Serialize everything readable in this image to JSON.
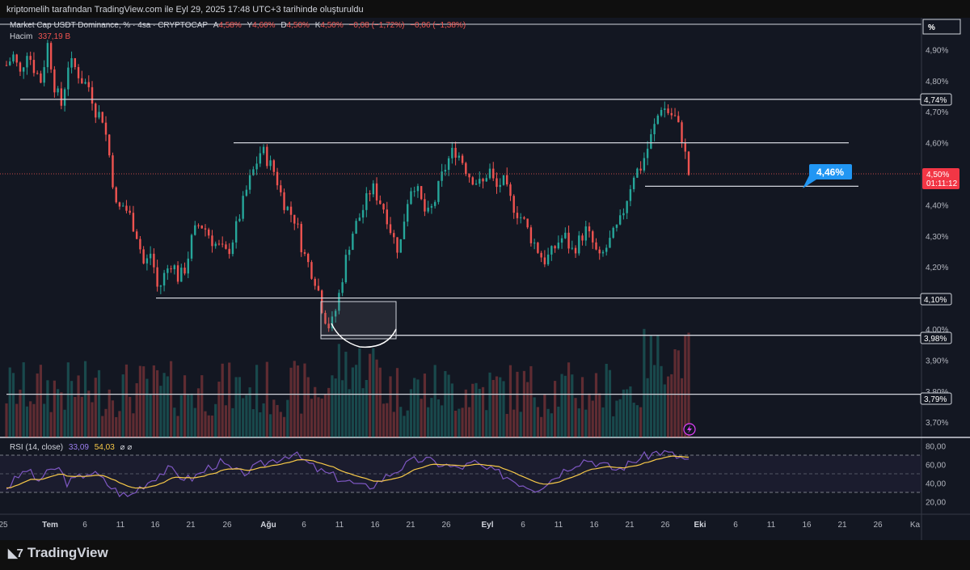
{
  "caption": "kriptomelih tarafından TradingView.com ile Eyl 29, 2025 17:48 UTC+3 tarihinde oluşturuldu",
  "header": {
    "symbol": "Market Cap USDT Dominance, % · 4sa · CRYPTOCAP",
    "a_label": "A",
    "a_value": "4,58%",
    "y_label": "Y",
    "y_value": "4,60%",
    "d_label": "D",
    "d_value": "4,50%",
    "k_label": "K",
    "k_value": "4,50%",
    "change": "−0,08 (−1,72%)",
    "change2": "−0,06 (−1,38%)",
    "volume_label": "Hacim",
    "volume_value": "337,19 B"
  },
  "unit_label": "%",
  "price_axis": [
    "4,90%",
    "4,80%",
    "4,70%",
    "4,60%",
    "4,40%",
    "4,30%",
    "4,20%",
    "4,00%",
    "3,90%",
    "3,80%",
    "3,70%"
  ],
  "level_labels": [
    "4,74%",
    "4,10%",
    "3,98%",
    "3,79%"
  ],
  "current_price": "4,50%",
  "countdown": "01:11:12",
  "callout": "4,46%",
  "rsi": {
    "title": "RSI (14, close)",
    "value1": "33,09",
    "value2": "54,03",
    "symbols": "⌀ ⌀",
    "axis": [
      "80,00",
      "60,00",
      "40,00",
      "20,00"
    ]
  },
  "time_axis": [
    "25",
    "Tem",
    "6",
    "11",
    "16",
    "21",
    "26",
    "Ağu",
    "6",
    "11",
    "16",
    "21",
    "26",
    "Eyl",
    "6",
    "11",
    "16",
    "21",
    "26",
    "Eki",
    "6",
    "11",
    "16",
    "21",
    "26",
    "Ka"
  ],
  "footer": "TradingView",
  "colors": {
    "up": "#26a69a",
    "down": "#ef5350",
    "rsi": "#7e57c2",
    "rsi_ma": "#f7c948",
    "accent": "#2962ff",
    "callout": "#2196f3"
  },
  "chart_data": {
    "type": "candlestick",
    "title": "Market Cap USDT Dominance, % · 4sa · CRYPTOCAP",
    "ylim": [
      3.65,
      4.95
    ],
    "x_period": "Jun 25 – Sep 29, 2025",
    "price_path": [
      4.85,
      4.88,
      4.82,
      4.9,
      4.84,
      4.8,
      4.92,
      4.78,
      4.72,
      4.86,
      4.84,
      4.8,
      4.78,
      4.7,
      4.68,
      4.55,
      4.38,
      4.4,
      4.36,
      4.3,
      4.2,
      4.25,
      4.12,
      4.18,
      4.22,
      4.16,
      4.2,
      4.3,
      4.34,
      4.32,
      4.28,
      4.26,
      4.24,
      4.3,
      4.38,
      4.46,
      4.52,
      4.58,
      4.54,
      4.5,
      4.42,
      4.38,
      4.35,
      4.25,
      4.2,
      4.15,
      4.05,
      4.0,
      4.08,
      4.2,
      4.3,
      4.35,
      4.4,
      4.46,
      4.42,
      4.38,
      4.3,
      4.25,
      4.4,
      4.48,
      4.42,
      4.36,
      4.4,
      4.48,
      4.54,
      4.58,
      4.55,
      4.5,
      4.48,
      4.46,
      4.52,
      4.45,
      4.48,
      4.42,
      4.38,
      4.35,
      4.3,
      4.26,
      4.22,
      4.24,
      4.28,
      4.3,
      4.25,
      4.28,
      4.32,
      4.28,
      4.22,
      4.26,
      4.3,
      4.34,
      4.42,
      4.5,
      4.52,
      4.58,
      4.65,
      4.72,
      4.7,
      4.68,
      4.62,
      4.5
    ],
    "levels": [
      4.74,
      4.6,
      4.46,
      4.1,
      3.98,
      3.79
    ],
    "rsi_path": [
      35,
      45,
      55,
      42,
      50,
      58,
      40,
      45,
      52,
      48,
      38,
      30,
      25,
      35,
      42,
      50,
      55,
      48,
      44,
      50,
      58,
      62,
      55,
      50,
      54,
      60,
      64,
      68,
      72,
      66,
      58,
      52,
      48,
      44,
      40,
      35,
      38,
      45,
      52,
      58,
      64,
      66,
      62,
      60,
      56,
      58,
      62,
      55,
      52,
      48,
      42,
      38,
      34,
      40,
      48,
      56,
      62,
      66,
      62,
      58,
      54,
      60,
      66,
      70,
      74,
      72,
      68,
      64
    ],
    "rsi_axis": [
      80,
      60,
      40,
      20
    ]
  }
}
